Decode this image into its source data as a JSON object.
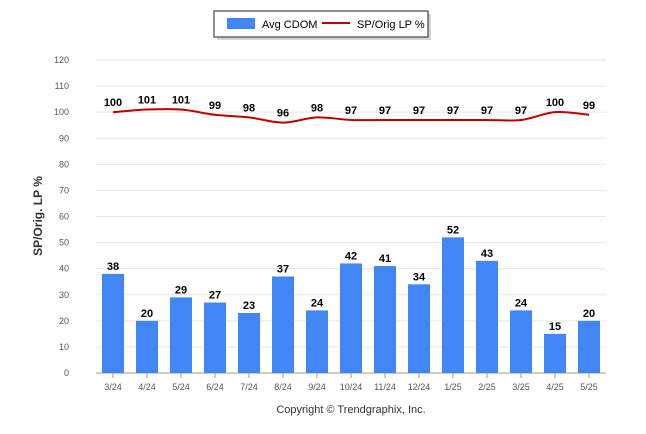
{
  "legend": {
    "bar_label": "Avg CDOM",
    "line_label": "SP/Orig LP %"
  },
  "copyright": "Copyright © Trendgraphix, Inc.",
  "chart_data": {
    "type": "bar",
    "ylabel": "SP/Orig. LP %",
    "ylim": [
      0,
      120
    ],
    "yticks": [
      0,
      10,
      20,
      30,
      40,
      50,
      60,
      70,
      80,
      90,
      100,
      110,
      120
    ],
    "grid": true,
    "legend_position": "top-center",
    "categories": [
      "3/24",
      "4/24",
      "5/24",
      "6/24",
      "7/24",
      "8/24",
      "9/24",
      "10/24",
      "11/24",
      "12/24",
      "1/25",
      "2/25",
      "3/25",
      "4/25",
      "5/25"
    ],
    "series": [
      {
        "name": "Avg CDOM",
        "type": "bar",
        "color": "#4285f4",
        "values": [
          38,
          20,
          29,
          27,
          23,
          37,
          24,
          42,
          41,
          34,
          52,
          43,
          24,
          15,
          20
        ]
      },
      {
        "name": "SP/Orig LP %",
        "type": "line",
        "color": "#c00000",
        "values": [
          100,
          101,
          101,
          99,
          98,
          96,
          98,
          97,
          97,
          97,
          97,
          97,
          97,
          100,
          99
        ]
      }
    ]
  }
}
